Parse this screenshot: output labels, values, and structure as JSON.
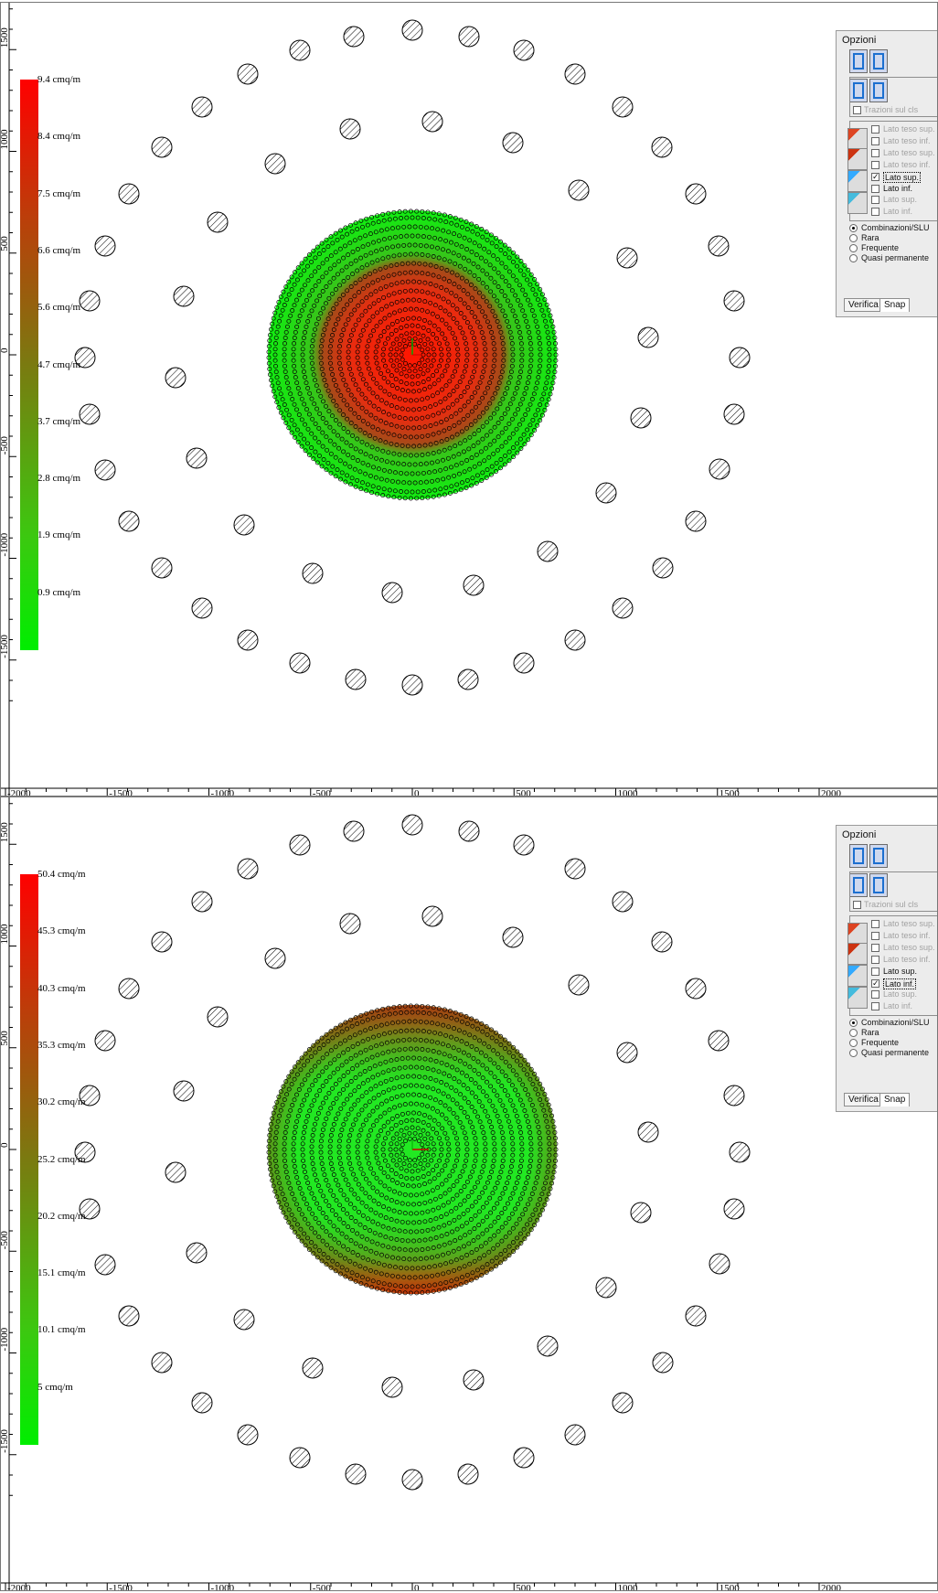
{
  "colors": {
    "max": "#ff0000",
    "min": "#00ee00",
    "background": "#ffffff"
  },
  "views": [
    {
      "legend": [
        "9.4 cmq/m",
        "8.4 cmq/m",
        "7.5 cmq/m",
        "6.6 cmq/m",
        "5.6 cmq/m",
        "4.7 cmq/m",
        "3.7 cmq/m",
        "2.8 cmq/m",
        "1.9 cmq/m",
        "0.9 cmq/m"
      ],
      "x_ticks": [
        "-2000",
        "-1500",
        "-1000",
        "-500",
        "0",
        "500",
        "1000",
        "1500",
        "2000"
      ],
      "y_ticks": [
        "1500",
        "1000",
        "500",
        "0",
        "-500",
        "-1000",
        "-1500"
      ],
      "panel": {
        "title": "Opzioni",
        "tractions_label": "Trazioni sul cls",
        "side_options": [
          {
            "label": "Lato teso sup.",
            "checked": false,
            "enabled": false
          },
          {
            "label": "Lato teso inf.",
            "checked": false,
            "enabled": false
          },
          {
            "label": "Lato teso sup.",
            "checked": false,
            "enabled": false
          },
          {
            "label": "Lato teso inf.",
            "checked": false,
            "enabled": false
          },
          {
            "label": "Lato sup.",
            "checked": true,
            "enabled": true
          },
          {
            "label": "Lato inf.",
            "checked": false,
            "enabled": true
          },
          {
            "label": "Lato sup.",
            "checked": false,
            "enabled": false
          },
          {
            "label": "Lato inf.",
            "checked": false,
            "enabled": false
          }
        ],
        "combinations": [
          "Combinazioni/SLU",
          "Rara",
          "Frequente",
          "Quasi permanente"
        ],
        "selected_combination": 0,
        "tabs": [
          "Verifica",
          "Snap"
        ],
        "active_tab": 1
      },
      "distribution": "center-high"
    },
    {
      "legend": [
        "50.4 cmq/m",
        "45.3 cmq/m",
        "40.3 cmq/m",
        "35.3 cmq/m",
        "30.2 cmq/m",
        "25.2 cmq/m",
        "20.2 cmq/m",
        "15.1 cmq/m",
        "10.1 cmq/m",
        "5 cmq/m"
      ],
      "x_ticks": [
        "-2000",
        "-1500",
        "-1000",
        "-500",
        "0",
        "500",
        "1000",
        "1500",
        "2000"
      ],
      "y_ticks": [
        "1500",
        "1000",
        "500",
        "0",
        "-500",
        "-1000",
        "-1500"
      ],
      "panel": {
        "title": "Opzioni",
        "tractions_label": "Trazioni sul cls",
        "side_options": [
          {
            "label": "Lato teso sup.",
            "checked": false,
            "enabled": false
          },
          {
            "label": "Lato teso inf.",
            "checked": false,
            "enabled": false
          },
          {
            "label": "Lato teso sup.",
            "checked": false,
            "enabled": false
          },
          {
            "label": "Lato teso inf.",
            "checked": false,
            "enabled": false
          },
          {
            "label": "Lato sup.",
            "checked": false,
            "enabled": true
          },
          {
            "label": "Lato inf.",
            "checked": true,
            "enabled": true
          },
          {
            "label": "Lato sup.",
            "checked": false,
            "enabled": false
          },
          {
            "label": "Lato inf.",
            "checked": false,
            "enabled": false
          }
        ],
        "combinations": [
          "Combinazioni/SLU",
          "Rara",
          "Frequente",
          "Quasi permanente"
        ],
        "selected_combination": 0,
        "tabs": [
          "Verifica",
          "Snap"
        ],
        "active_tab": 1
      },
      "distribution": "edge-high"
    }
  ]
}
